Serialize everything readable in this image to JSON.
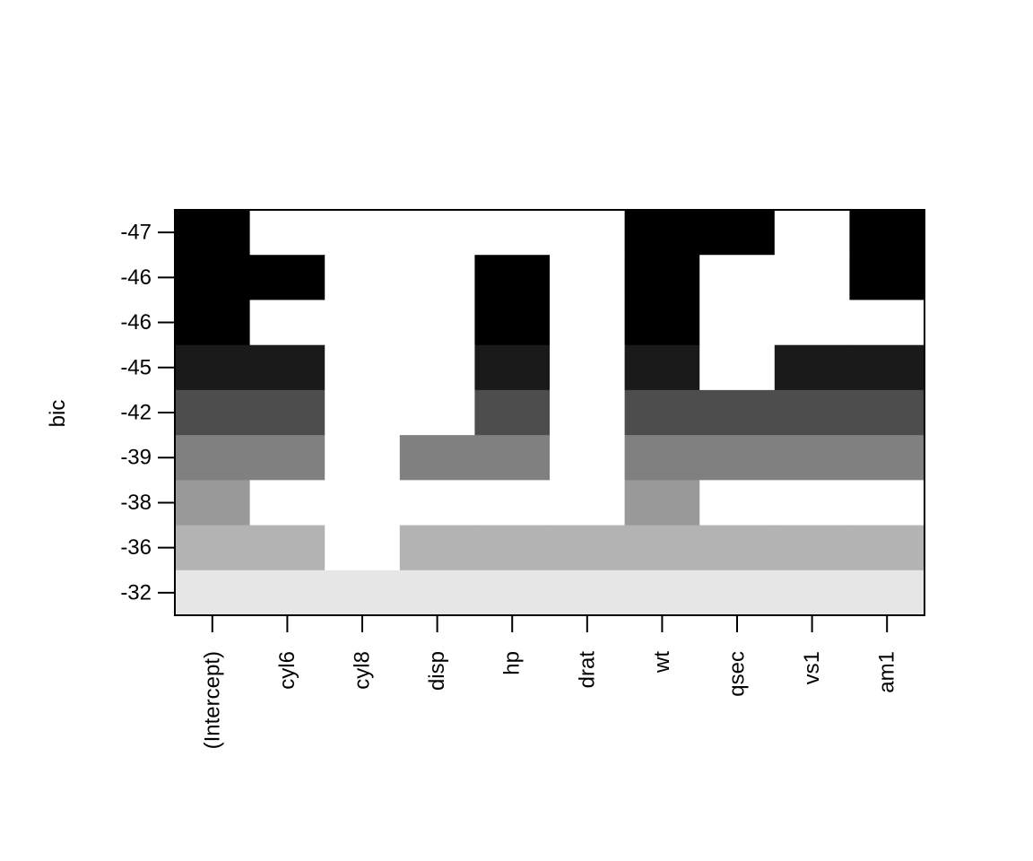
{
  "chart_data": {
    "type": "heatmap",
    "title": "",
    "xlabel": "",
    "ylabel": "bic",
    "categories": [
      "(Intercept)",
      "cyl6",
      "cyl8",
      "disp",
      "hp",
      "drat",
      "wt",
      "qsec",
      "vs1",
      "am1"
    ],
    "row_labels": [
      "-47",
      "-46",
      "-46",
      "-45",
      "-42",
      "-39",
      "-38",
      "-36",
      "-32"
    ],
    "row_colors": [
      "#000000",
      "#000000",
      "#000000",
      "#1a1a1a",
      "#4d4d4d",
      "#808080",
      "#999999",
      "#b3b3b3",
      "#e6e6e6"
    ],
    "matrix": [
      [
        1,
        0,
        0,
        0,
        0,
        0,
        1,
        1,
        0,
        1
      ],
      [
        1,
        1,
        0,
        0,
        1,
        0,
        1,
        0,
        0,
        1
      ],
      [
        1,
        0,
        0,
        0,
        1,
        0,
        1,
        0,
        0,
        0
      ],
      [
        1,
        1,
        0,
        0,
        1,
        0,
        1,
        0,
        1,
        1
      ],
      [
        1,
        1,
        0,
        0,
        1,
        0,
        1,
        1,
        1,
        1
      ],
      [
        1,
        1,
        0,
        1,
        1,
        0,
        1,
        1,
        1,
        1
      ],
      [
        1,
        0,
        0,
        0,
        0,
        0,
        1,
        0,
        0,
        0
      ],
      [
        1,
        1,
        0,
        1,
        1,
        1,
        1,
        1,
        1,
        1
      ],
      [
        1,
        1,
        1,
        1,
        1,
        1,
        1,
        1,
        1,
        1
      ]
    ],
    "empty_color": "#ffffff",
    "grid": false,
    "legend": "none"
  }
}
